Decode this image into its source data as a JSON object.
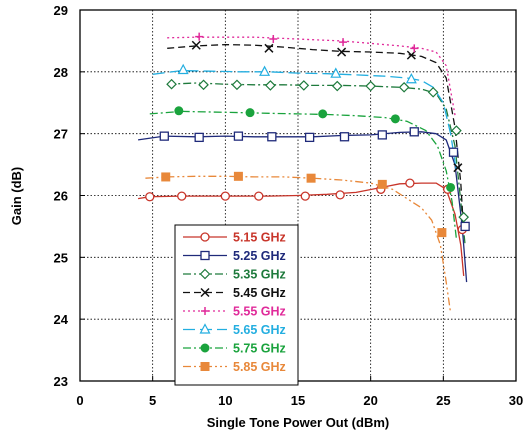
{
  "chart_data": {
    "type": "line",
    "title": "",
    "xlabel": "Single Tone Power Out (dBm)",
    "ylabel": "Gain (dB)",
    "xlim": [
      0,
      30
    ],
    "ylim": [
      23,
      29
    ],
    "xticks": [
      "0",
      "5",
      "10",
      "15",
      "20",
      "25",
      "30"
    ],
    "yticks": [
      "23",
      "24",
      "25",
      "26",
      "27",
      "28",
      "29"
    ],
    "grid": true,
    "legend_position": "lower-left",
    "series": [
      {
        "name": "5.15 GHz",
        "color": "#c8352a",
        "dash": "solid",
        "marker": "circle-open",
        "x": [
          4,
          4.8,
          7,
          9,
          11,
          13,
          15,
          17,
          19,
          20.5,
          22,
          23.5,
          24.5,
          25.2,
          25.8,
          26.2,
          26.4
        ],
        "y": [
          25.95,
          25.98,
          25.99,
          25.99,
          25.99,
          25.99,
          26.0,
          26.02,
          26.05,
          26.12,
          26.19,
          26.2,
          26.2,
          26.1,
          25.7,
          25.2,
          24.7
        ],
        "markers_x": [
          4.8,
          7,
          10,
          12.3,
          15.5,
          17.9,
          20.7,
          22.7,
          25.3,
          26.3
        ],
        "markers_y": [
          25.98,
          25.99,
          25.99,
          25.99,
          25.99,
          26.01,
          26.1,
          26.2,
          26.1,
          25.45
        ]
      },
      {
        "name": "5.25 GHz",
        "color": "#1f2a7a",
        "dash": "solid",
        "marker": "square-open",
        "x": [
          4,
          5.8,
          8,
          10,
          12,
          14,
          16,
          18,
          20,
          22,
          23.5,
          24.5,
          25.2,
          25.8,
          26.3,
          26.6
        ],
        "y": [
          26.9,
          26.96,
          26.95,
          26.96,
          26.95,
          26.95,
          26.95,
          26.97,
          26.98,
          27.02,
          27.03,
          27.0,
          26.9,
          26.5,
          25.5,
          24.6
        ],
        "markers_x": [
          5.8,
          8.2,
          10.9,
          13.2,
          15.8,
          18.2,
          20.8,
          23.0,
          25.7,
          26.5
        ],
        "markers_y": [
          26.96,
          26.94,
          26.96,
          26.95,
          26.94,
          26.95,
          26.98,
          27.03,
          26.7,
          25.5
        ]
      },
      {
        "name": "5.35 GHz",
        "color": "#1e7a3c",
        "dash": "dashdot",
        "marker": "diamond-open",
        "x": [
          6,
          8,
          10,
          12,
          14,
          16,
          18,
          20,
          22,
          23.5,
          24.5,
          25.2,
          25.8,
          26.2,
          26.5
        ],
        "y": [
          27.8,
          27.82,
          27.8,
          27.79,
          27.79,
          27.78,
          27.78,
          27.77,
          27.75,
          27.72,
          27.65,
          27.4,
          26.8,
          25.9,
          25.2
        ],
        "markers_x": [
          6.3,
          8.5,
          10.8,
          13.1,
          15.4,
          17.7,
          20.0,
          22.3,
          24.3,
          25.9,
          26.4
        ],
        "markers_y": [
          27.8,
          27.79,
          27.79,
          27.78,
          27.78,
          27.77,
          27.77,
          27.75,
          27.67,
          27.05,
          25.65
        ]
      },
      {
        "name": "5.45 GHz",
        "color": "#111111",
        "dash": "dashed",
        "marker": "x",
        "x": [
          6,
          8,
          10,
          12,
          14,
          16,
          18,
          20,
          22,
          23.5,
          24.5,
          25.2,
          25.8,
          26.2,
          26.4
        ],
        "y": [
          28.38,
          28.42,
          28.44,
          28.43,
          28.4,
          28.36,
          28.33,
          28.32,
          28.3,
          28.25,
          28.15,
          27.9,
          27.1,
          26.2,
          25.4
        ],
        "markers_x": [
          8.0,
          13.0,
          18.0,
          22.8,
          26.0
        ],
        "markers_y": [
          28.43,
          28.38,
          28.32,
          28.27,
          26.45
        ]
      },
      {
        "name": "5.55 GHz",
        "color": "#e02a9a",
        "dash": "dotted",
        "marker": "plus",
        "x": [
          6,
          8,
          10,
          12,
          14,
          16,
          18,
          20,
          22,
          23.5,
          24.5,
          25.2,
          25.8
        ],
        "y": [
          28.55,
          28.56,
          28.56,
          28.56,
          28.54,
          28.52,
          28.5,
          28.46,
          28.42,
          28.38,
          28.32,
          28.1,
          27.3
        ],
        "markers_x": [
          8.2,
          13.3,
          18.1,
          23.0
        ],
        "markers_y": [
          28.57,
          28.53,
          28.48,
          28.38
        ]
      },
      {
        "name": "5.65 GHz",
        "color": "#23aee0",
        "dash": "longdash",
        "marker": "triangle-open",
        "x": [
          5,
          7,
          9,
          11,
          13,
          15,
          17,
          19,
          21,
          22.5,
          23.5,
          24.3,
          25,
          25.5,
          25.9
        ],
        "y": [
          27.96,
          28.02,
          28.01,
          28.0,
          28.0,
          27.98,
          27.97,
          27.95,
          27.93,
          27.9,
          27.86,
          27.75,
          27.5,
          27.0,
          26.4
        ],
        "markers_x": [
          7.1,
          12.7,
          17.6,
          22.8
        ],
        "markers_y": [
          28.03,
          28.0,
          27.97,
          27.88
        ]
      },
      {
        "name": "5.75 GHz",
        "color": "#1aa33d",
        "dash": "dashdot",
        "marker": "circle-filled",
        "x": [
          4.8,
          7,
          9,
          11,
          13,
          15,
          17,
          19,
          21,
          22.5,
          23.8,
          24.6,
          25.2,
          25.6,
          25.9
        ],
        "y": [
          27.32,
          27.36,
          27.35,
          27.34,
          27.33,
          27.32,
          27.31,
          27.29,
          27.26,
          27.2,
          27.05,
          26.8,
          26.4,
          25.9,
          25.3
        ],
        "markers_x": [
          6.8,
          11.7,
          16.7,
          21.7,
          25.5
        ],
        "markers_y": [
          27.37,
          27.34,
          27.32,
          27.24,
          26.13
        ]
      },
      {
        "name": "5.85 GHz",
        "color": "#e8883a",
        "dash": "dashdotdot",
        "marker": "square-filled",
        "x": [
          4.5,
          6,
          8,
          10,
          12,
          14,
          16,
          18,
          20,
          21.5,
          22.5,
          23.5,
          24.2,
          24.8,
          25.2,
          25.5
        ],
        "y": [
          26.28,
          26.3,
          26.31,
          26.31,
          26.3,
          26.3,
          26.28,
          26.25,
          26.2,
          26.1,
          25.95,
          25.8,
          25.6,
          25.2,
          24.6,
          24.1
        ],
        "markers_x": [
          5.9,
          10.9,
          15.9,
          20.8,
          24.9
        ],
        "markers_y": [
          26.3,
          26.31,
          26.28,
          26.18,
          25.4
        ]
      }
    ]
  }
}
